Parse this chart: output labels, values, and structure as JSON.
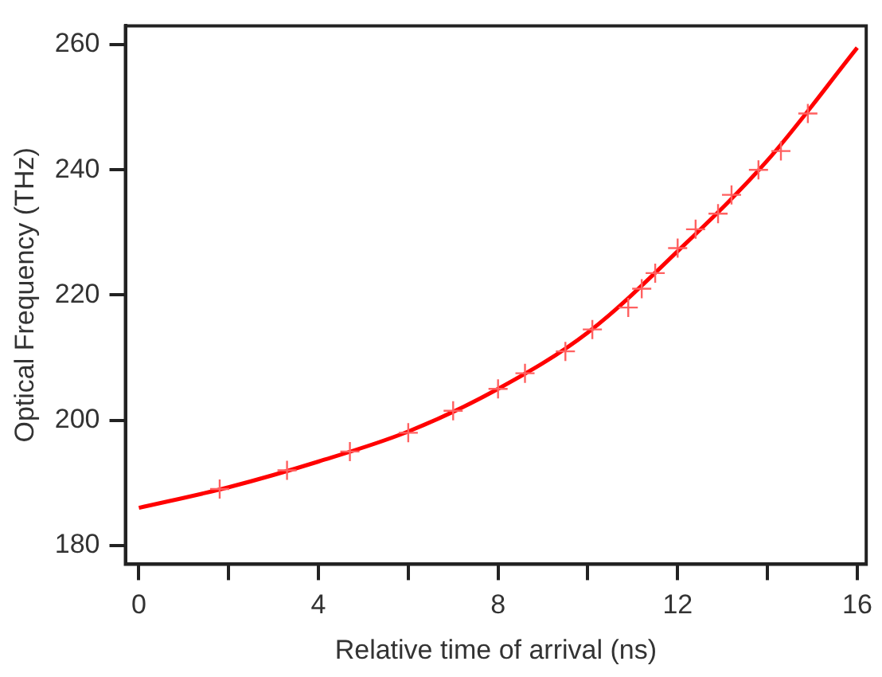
{
  "chart_data": {
    "type": "scatter",
    "xlabel": "Relative time of arrival (ns)",
    "ylabel": "Optical Frequency (THz)",
    "xlim": [
      -0.3,
      16.2
    ],
    "ylim": [
      177,
      263
    ],
    "xticks": [
      0,
      {
        "value": 2,
        "label": null
      },
      4,
      {
        "value": 6,
        "label": null
      },
      8,
      {
        "value": 10,
        "label": null
      },
      12,
      {
        "value": 14,
        "label": null
      },
      16
    ],
    "yticks": [
      180,
      200,
      220,
      240,
      260
    ],
    "grid": false,
    "legend": false,
    "series": [
      {
        "type": "scatter",
        "color": "#ff6060",
        "marker": "cross",
        "x": [
          1.8,
          3.3,
          4.7,
          6,
          7,
          8,
          8.6,
          9.5,
          10.1,
          10.9,
          11.2,
          11.5,
          12,
          12.4,
          12.9,
          13.2,
          13.8,
          14.3,
          14.9
        ],
        "values": [
          189,
          192,
          195,
          198,
          201.5,
          205,
          207.5,
          211,
          214.5,
          218,
          221,
          223.5,
          227.5,
          230.5,
          233,
          236,
          240,
          243,
          249
        ]
      },
      {
        "type": "line",
        "color": "#ff0000",
        "line_style": "solid",
        "marker": "none",
        "x": [
          0,
          2,
          4,
          6,
          8,
          10,
          12,
          14,
          16
        ],
        "values": [
          186,
          189.3,
          193.4,
          198.2,
          205,
          214,
          227,
          241.5,
          259.5
        ]
      }
    ]
  }
}
